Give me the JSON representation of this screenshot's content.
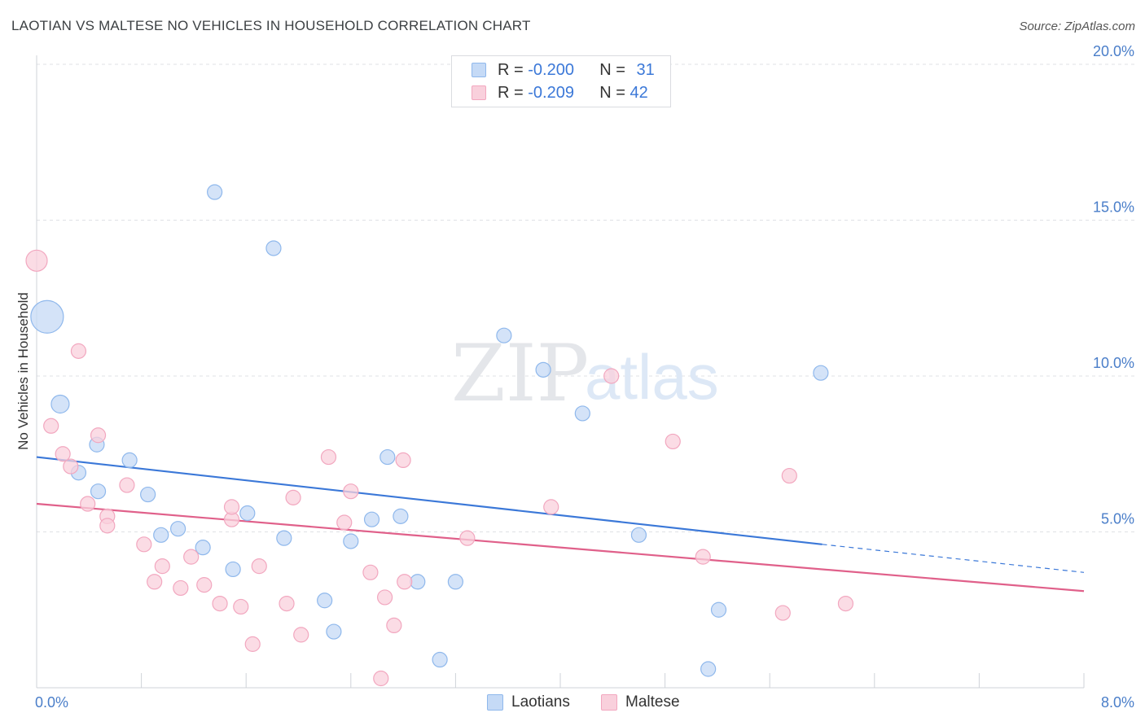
{
  "header": {
    "title": "LAOTIAN VS MALTESE NO VEHICLES IN HOUSEHOLD CORRELATION CHART",
    "source": "Source: ZipAtlas.com"
  },
  "watermark": {
    "zip": "ZIP",
    "atlas": "atlas"
  },
  "legend": {
    "rows": [
      {
        "r_label": "R =",
        "r_value": "-0.200",
        "n_label": "N =",
        "n_value": "31"
      },
      {
        "r_label": "R =",
        "r_value": "-0.209",
        "n_label": "N =",
        "n_value": "42"
      }
    ]
  },
  "chart_data": {
    "type": "scatter",
    "title": "LAOTIAN VS MALTESE NO VEHICLES IN HOUSEHOLD CORRELATION CHART",
    "xlabel": "",
    "ylabel": "No Vehicles in Household",
    "xlim": [
      0,
      8
    ],
    "ylim": [
      0,
      20
    ],
    "x_tick_labels": [
      "0.0%",
      "8.0%"
    ],
    "y_ticks": [
      5,
      10,
      15,
      20
    ],
    "y_tick_labels": [
      "5.0%",
      "10.0%",
      "15.0%",
      "20.0%"
    ],
    "grid": true,
    "series": [
      {
        "name": "Laotians",
        "color": "#8fb8ec",
        "fill": "#c5daf6",
        "line_color": "#3b78d8",
        "trend": {
          "x0": 0.0,
          "y0": 7.4,
          "x1": 6.0,
          "y1": 4.6,
          "dash_to_x": 8.0,
          "dash_to_y": 3.7
        },
        "points": [
          [
            0.08,
            11.9,
            20
          ],
          [
            1.36,
            15.9,
            9
          ],
          [
            1.81,
            14.1,
            9
          ],
          [
            0.18,
            9.1,
            11
          ],
          [
            0.46,
            7.8,
            9
          ],
          [
            0.32,
            6.9,
            9
          ],
          [
            0.71,
            7.3,
            9
          ],
          [
            0.47,
            6.3,
            9
          ],
          [
            0.85,
            6.2,
            9
          ],
          [
            0.95,
            4.9,
            9
          ],
          [
            1.08,
            5.1,
            9
          ],
          [
            1.27,
            4.5,
            9
          ],
          [
            1.5,
            3.8,
            9
          ],
          [
            1.61,
            5.6,
            9
          ],
          [
            1.89,
            4.8,
            9
          ],
          [
            2.2,
            2.8,
            9
          ],
          [
            2.27,
            1.8,
            9
          ],
          [
            2.4,
            4.7,
            9
          ],
          [
            2.56,
            5.4,
            9
          ],
          [
            2.68,
            7.4,
            9
          ],
          [
            2.78,
            5.5,
            9
          ],
          [
            2.91,
            3.4,
            9
          ],
          [
            3.08,
            0.9,
            9
          ],
          [
            3.2,
            3.4,
            9
          ],
          [
            3.57,
            11.3,
            9
          ],
          [
            3.87,
            10.2,
            9
          ],
          [
            4.17,
            8.8,
            9
          ],
          [
            4.6,
            4.9,
            9
          ],
          [
            5.21,
            2.5,
            9
          ],
          [
            5.13,
            0.6,
            9
          ],
          [
            5.99,
            10.1,
            9
          ]
        ]
      },
      {
        "name": "Maltese",
        "color": "#f2a7bf",
        "fill": "#f9d0dc",
        "line_color": "#e0608a",
        "trend": {
          "x0": 0.0,
          "y0": 5.9,
          "x1": 8.0,
          "y1": 3.1
        },
        "points": [
          [
            0.0,
            13.7,
            13
          ],
          [
            0.32,
            10.8,
            9
          ],
          [
            0.11,
            8.4,
            9
          ],
          [
            0.2,
            7.5,
            9
          ],
          [
            0.26,
            7.1,
            9
          ],
          [
            0.47,
            8.1,
            9
          ],
          [
            0.39,
            5.9,
            9
          ],
          [
            0.54,
            5.5,
            9
          ],
          [
            0.54,
            5.2,
            9
          ],
          [
            0.69,
            6.5,
            9
          ],
          [
            0.82,
            4.6,
            9
          ],
          [
            0.9,
            3.4,
            9
          ],
          [
            0.96,
            3.9,
            9
          ],
          [
            1.1,
            3.2,
            9
          ],
          [
            1.18,
            4.2,
            9
          ],
          [
            1.28,
            3.3,
            9
          ],
          [
            1.4,
            2.7,
            9
          ],
          [
            1.49,
            5.4,
            9
          ],
          [
            1.49,
            5.8,
            9
          ],
          [
            1.56,
            2.6,
            9
          ],
          [
            1.65,
            1.4,
            9
          ],
          [
            1.7,
            3.9,
            9
          ],
          [
            1.91,
            2.7,
            9
          ],
          [
            1.96,
            6.1,
            9
          ],
          [
            2.02,
            1.7,
            9
          ],
          [
            2.23,
            7.4,
            9
          ],
          [
            2.35,
            5.3,
            9
          ],
          [
            2.4,
            6.3,
            9
          ],
          [
            2.55,
            3.7,
            9
          ],
          [
            2.63,
            0.3,
            9
          ],
          [
            2.66,
            2.9,
            9
          ],
          [
            2.73,
            2.0,
            9
          ],
          [
            2.8,
            7.3,
            9
          ],
          [
            2.81,
            3.4,
            9
          ],
          [
            3.29,
            4.8,
            9
          ],
          [
            3.93,
            5.8,
            9
          ],
          [
            4.39,
            10.0,
            9
          ],
          [
            4.86,
            7.9,
            9
          ],
          [
            5.09,
            4.2,
            9
          ],
          [
            5.7,
            2.4,
            9
          ],
          [
            5.75,
            6.8,
            9
          ],
          [
            6.18,
            2.7,
            9
          ]
        ]
      }
    ]
  },
  "bottom_legend": [
    {
      "label": "Laotians",
      "color": "#c5daf6",
      "border": "#8fb8ec"
    },
    {
      "label": "Maltese",
      "color": "#f9d0dc",
      "border": "#f2a7bf"
    }
  ]
}
